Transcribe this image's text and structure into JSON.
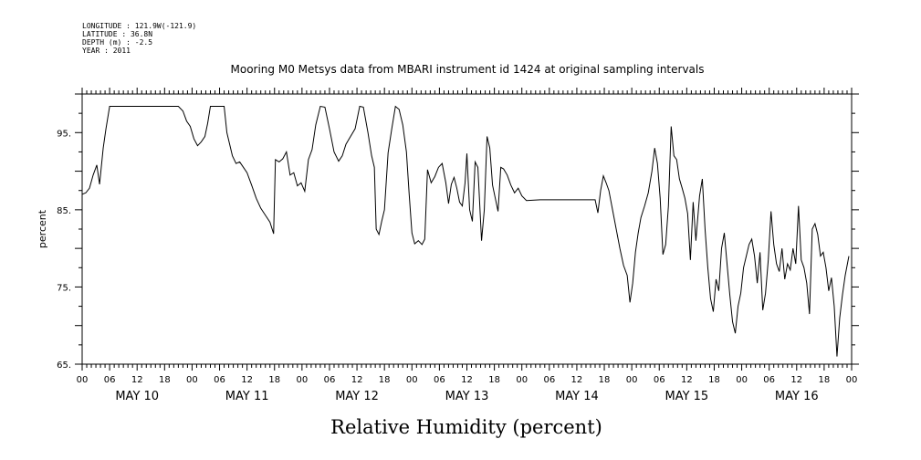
{
  "header": {
    "longitude": "LONGITUDE : 121.9W(-121.9)",
    "latitude": "LATITUDE : 36.8N",
    "depth": "DEPTH (m) : -2.5",
    "year": "YEAR : 2011"
  },
  "chart_data": {
    "type": "line",
    "title": "Mooring M0 Metsys data from MBARI instrument id 1424 at original sampling intervals",
    "xlabel": "Relative Humidity (percent)",
    "ylabel": "percent",
    "ylim": [
      65,
      100
    ],
    "xlim_hours": [
      0,
      168
    ],
    "yticks": [
      {
        "v": 95,
        "label": "95."
      },
      {
        "v": 85,
        "label": "85."
      },
      {
        "v": 75,
        "label": "75."
      },
      {
        "v": 65,
        "label": "65."
      }
    ],
    "hour_labels": [
      "00",
      "06",
      "12",
      "18",
      "00",
      "06",
      "12",
      "18",
      "00",
      "06",
      "12",
      "18",
      "00",
      "06",
      "12",
      "18",
      "00",
      "06",
      "12",
      "18",
      "00",
      "06",
      "12",
      "18",
      "00",
      "06",
      "12",
      "18",
      "00"
    ],
    "day_labels": [
      "MAY 10",
      "MAY 11",
      "MAY 12",
      "MAY 13",
      "MAY 14",
      "MAY 15",
      "MAY 16"
    ],
    "grid": false,
    "series": [
      {
        "points": [
          [
            0,
            87
          ],
          [
            0.8,
            87.2
          ],
          [
            1.6,
            87.8
          ],
          [
            2.4,
            89.5
          ],
          [
            3.2,
            90.8
          ],
          [
            3.8,
            88.3
          ],
          [
            4.6,
            93
          ],
          [
            5.2,
            95.5
          ],
          [
            6,
            98.4
          ],
          [
            9,
            98.4
          ],
          [
            12,
            98.4
          ],
          [
            15,
            98.4
          ],
          [
            18,
            98.4
          ],
          [
            21,
            98.4
          ],
          [
            22,
            97.8
          ],
          [
            22.8,
            96.5
          ],
          [
            23.6,
            95.8
          ],
          [
            24.4,
            94.2
          ],
          [
            25.2,
            93.3
          ],
          [
            26,
            93.8
          ],
          [
            26.8,
            94.5
          ],
          [
            27.4,
            96.2
          ],
          [
            28,
            98.4
          ],
          [
            31,
            98.4
          ],
          [
            31.6,
            95
          ],
          [
            32.2,
            93.5
          ],
          [
            32.8,
            92
          ],
          [
            33.6,
            91
          ],
          [
            34.4,
            91.2
          ],
          [
            35.2,
            90.5
          ],
          [
            36,
            89.8
          ],
          [
            37,
            88.2
          ],
          [
            38,
            86.5
          ],
          [
            39,
            85.2
          ],
          [
            40,
            84.3
          ],
          [
            41,
            83.4
          ],
          [
            41.8,
            81.9
          ],
          [
            42.2,
            91.5
          ],
          [
            43,
            91.2
          ],
          [
            43.8,
            91.6
          ],
          [
            44.6,
            92.5
          ],
          [
            45.4,
            89.5
          ],
          [
            46.2,
            89.8
          ],
          [
            47,
            88.1
          ],
          [
            47.8,
            88.5
          ],
          [
            48.6,
            87.4
          ],
          [
            49.4,
            91.5
          ],
          [
            50.2,
            92.8
          ],
          [
            51,
            96
          ],
          [
            52,
            98.4
          ],
          [
            53,
            98.3
          ],
          [
            54,
            95.5
          ],
          [
            55,
            92.5
          ],
          [
            56,
            91.3
          ],
          [
            56.8,
            92
          ],
          [
            57.6,
            93.5
          ],
          [
            58.6,
            94.5
          ],
          [
            59.6,
            95.5
          ],
          [
            60.6,
            98.4
          ],
          [
            61.4,
            98.3
          ],
          [
            62.4,
            95
          ],
          [
            63.2,
            92
          ],
          [
            63.8,
            90.5
          ],
          [
            64.2,
            82.5
          ],
          [
            64.8,
            81.8
          ],
          [
            65.4,
            83.5
          ],
          [
            66,
            85
          ],
          [
            66.8,
            92.4
          ],
          [
            67.6,
            95.5
          ],
          [
            68.4,
            98.4
          ],
          [
            69.2,
            98
          ],
          [
            70,
            96
          ],
          [
            70.8,
            92.5
          ],
          [
            71.4,
            87
          ],
          [
            72,
            82
          ],
          [
            72.6,
            80.6
          ],
          [
            73.4,
            81
          ],
          [
            74.2,
            80.5
          ],
          [
            74.8,
            81.2
          ],
          [
            75.4,
            90.2
          ],
          [
            76.2,
            88.5
          ],
          [
            77,
            89.3
          ],
          [
            77.8,
            90.5
          ],
          [
            78.6,
            91
          ],
          [
            79.4,
            88.5
          ],
          [
            80,
            85.8
          ],
          [
            80.6,
            88.3
          ],
          [
            81.2,
            89.2
          ],
          [
            81.8,
            87.8
          ],
          [
            82.4,
            86
          ],
          [
            83,
            85.5
          ],
          [
            83.6,
            88.5
          ],
          [
            84,
            92.3
          ],
          [
            84.6,
            85
          ],
          [
            85.2,
            83.5
          ],
          [
            85.8,
            91.2
          ],
          [
            86.4,
            90.5
          ],
          [
            87.2,
            81
          ],
          [
            87.8,
            85
          ],
          [
            88.4,
            94.5
          ],
          [
            89,
            93
          ],
          [
            89.6,
            88.2
          ],
          [
            90.2,
            86.5
          ],
          [
            90.8,
            84.8
          ],
          [
            91.4,
            90.5
          ],
          [
            92,
            90.3
          ],
          [
            92.8,
            89.5
          ],
          [
            93.6,
            88.2
          ],
          [
            94.4,
            87.2
          ],
          [
            95.2,
            87.8
          ],
          [
            96,
            86.8
          ],
          [
            97,
            86.2
          ],
          [
            100,
            86.3
          ],
          [
            104,
            86.3
          ],
          [
            108,
            86.3
          ],
          [
            112,
            86.3
          ],
          [
            112.6,
            84.6
          ],
          [
            113.2,
            87.5
          ],
          [
            113.8,
            89.4
          ],
          [
            114.4,
            88.5
          ],
          [
            115,
            87.5
          ],
          [
            115.8,
            85
          ],
          [
            116.6,
            82.5
          ],
          [
            117.4,
            80
          ],
          [
            118.2,
            77.8
          ],
          [
            119,
            76.5
          ],
          [
            119.6,
            73
          ],
          [
            120.2,
            75.5
          ],
          [
            120.8,
            79.5
          ],
          [
            121.4,
            82
          ],
          [
            122,
            84
          ],
          [
            122.8,
            85.5
          ],
          [
            123.6,
            87.2
          ],
          [
            124.4,
            90
          ],
          [
            125,
            93
          ],
          [
            125.6,
            91
          ],
          [
            126.2,
            86.5
          ],
          [
            126.8,
            79.2
          ],
          [
            127.4,
            80.5
          ],
          [
            128,
            85.5
          ],
          [
            128.6,
            95.8
          ],
          [
            129.2,
            92
          ],
          [
            129.8,
            91.5
          ],
          [
            130.4,
            89
          ],
          [
            131,
            87.8
          ],
          [
            131.6,
            86.5
          ],
          [
            132.2,
            84.5
          ],
          [
            132.8,
            78.5
          ],
          [
            133.4,
            86
          ],
          [
            134,
            81
          ],
          [
            134.8,
            86.8
          ],
          [
            135.4,
            89
          ],
          [
            136,
            82.5
          ],
          [
            136.6,
            77.5
          ],
          [
            137.2,
            73.5
          ],
          [
            137.8,
            71.8
          ],
          [
            138.4,
            76
          ],
          [
            139,
            74.5
          ],
          [
            139.6,
            80
          ],
          [
            140.2,
            82
          ],
          [
            140.8,
            78
          ],
          [
            141.4,
            74
          ],
          [
            142,
            70.5
          ],
          [
            142.6,
            69
          ],
          [
            143.2,
            72.5
          ],
          [
            143.8,
            74.2
          ],
          [
            144.4,
            77.5
          ],
          [
            145,
            79
          ],
          [
            145.6,
            80.5
          ],
          [
            146.2,
            81.2
          ],
          [
            146.8,
            79
          ],
          [
            147.4,
            75.5
          ],
          [
            148,
            79.5
          ],
          [
            148.6,
            72
          ],
          [
            149.2,
            74.2
          ],
          [
            149.8,
            78.5
          ],
          [
            150.4,
            84.8
          ],
          [
            151,
            80.5
          ],
          [
            151.6,
            78
          ],
          [
            152.2,
            77
          ],
          [
            152.8,
            80
          ],
          [
            153.4,
            76
          ],
          [
            154,
            78
          ],
          [
            154.6,
            77.2
          ],
          [
            155.2,
            80
          ],
          [
            155.8,
            78
          ],
          [
            156.4,
            85.5
          ],
          [
            157,
            78.5
          ],
          [
            157.6,
            77.5
          ],
          [
            158.2,
            75.5
          ],
          [
            158.8,
            71.5
          ],
          [
            159.4,
            82.5
          ],
          [
            160,
            83.2
          ],
          [
            160.6,
            81.8
          ],
          [
            161.2,
            79
          ],
          [
            161.8,
            79.5
          ],
          [
            162.4,
            77.5
          ],
          [
            163,
            74.5
          ],
          [
            163.6,
            76.2
          ],
          [
            164.2,
            72.5
          ],
          [
            164.8,
            66
          ],
          [
            165.4,
            71
          ],
          [
            166,
            74
          ],
          [
            166.6,
            76.5
          ],
          [
            167.4,
            79
          ]
        ]
      }
    ]
  }
}
